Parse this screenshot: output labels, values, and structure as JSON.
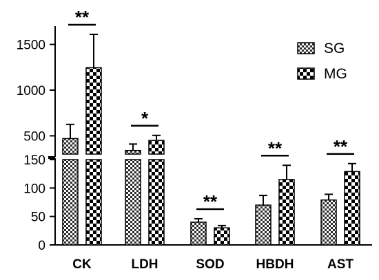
{
  "chart_data": {
    "type": "bar",
    "title": "",
    "xlabel": "",
    "ylabel": "",
    "categories": [
      "CK",
      "LDH",
      "SOD",
      "HBDH",
      "AST"
    ],
    "series": [
      {
        "name": "SG",
        "values": [
          470,
          340,
          40,
          70,
          79
        ],
        "errors": [
          155,
          70,
          6,
          17,
          10
        ]
      },
      {
        "name": "MG",
        "values": [
          1245,
          450,
          30,
          115,
          129
        ],
        "errors": [
          365,
          55,
          4,
          25,
          14
        ]
      }
    ],
    "colors": {
      "SG": "#5a5a5a",
      "MG": "#000000"
    },
    "patterns": {
      "SG": "fine-checker",
      "MG": "coarse-checker"
    },
    "axis_break": {
      "lower_range": [
        0,
        150
      ],
      "upper_range": [
        300,
        1700
      ]
    },
    "y_ticks_lower": [
      "0",
      "50",
      "100",
      "150"
    ],
    "y_ticks_upper": [
      "500",
      "1000",
      "1500"
    ],
    "significance": [
      "**",
      "*",
      "**",
      "**",
      "**"
    ],
    "legend_position": "top-right",
    "grid": false
  }
}
